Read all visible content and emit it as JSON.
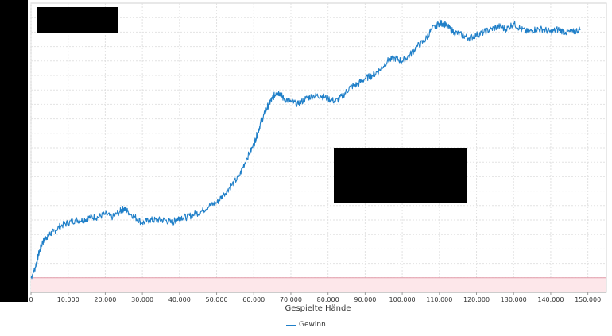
{
  "chart_data": {
    "type": "line",
    "title": "",
    "xlabel": "Gespielte Hände",
    "ylabel": "",
    "xlim": [
      0,
      155000
    ],
    "x_ticks": [
      0,
      10000,
      20000,
      30000,
      40000,
      50000,
      60000,
      70000,
      80000,
      90000,
      100000,
      110000,
      120000,
      130000,
      140000,
      150000
    ],
    "x_tick_labels": [
      "0",
      "10.000",
      "20.000",
      "30.000",
      "40.000",
      "50.000",
      "60.000",
      "70.000",
      "80.000",
      "90.000",
      "100.000",
      "110.000",
      "120.000",
      "130.000",
      "140.000",
      "150.000"
    ],
    "grid": true,
    "legend_position": "bottom",
    "negative_region": "shaded red below zero line",
    "series": [
      {
        "name": "Gewinn",
        "color": "#1f7fc8",
        "x": [
          0,
          1000,
          2000,
          3000,
          4000,
          5000,
          6000,
          8000,
          10000,
          12000,
          14000,
          16000,
          18000,
          20000,
          22000,
          24000,
          25000,
          26000,
          28000,
          30000,
          32000,
          34000,
          36000,
          38000,
          39000,
          40000,
          42000,
          44000,
          46000,
          48000,
          50000,
          52000,
          54000,
          56000,
          58000,
          60000,
          61000,
          62000,
          63000,
          64000,
          65000,
          66000,
          67000,
          68000,
          70000,
          72000,
          74000,
          76000,
          78000,
          80000,
          82000,
          84000,
          86000,
          88000,
          90000,
          92000,
          94000,
          96000,
          98000,
          100000,
          102000,
          104000,
          106000,
          108000,
          110000,
          111000,
          112000,
          114000,
          116000,
          118000,
          120000,
          122000,
          124000,
          126000,
          128000,
          130000,
          132000,
          134000,
          136000,
          138000,
          140000,
          142000,
          144000,
          146000,
          148000
        ],
        "values": [
          0,
          3,
          8,
          12,
          14,
          15,
          16,
          18,
          19,
          20,
          20,
          21,
          21,
          22,
          21,
          23,
          24,
          23,
          21,
          19,
          20,
          20,
          20,
          19,
          20,
          21,
          21,
          22,
          23,
          25,
          26,
          29,
          32,
          35,
          41,
          46,
          50,
          54,
          57,
          60,
          62,
          64,
          64,
          62,
          61,
          60,
          62,
          63,
          63,
          62,
          61,
          63,
          66,
          67,
          69,
          70,
          72,
          75,
          76,
          75,
          77,
          80,
          82,
          86,
          88,
          88,
          87,
          85,
          84,
          83,
          84,
          85,
          86,
          87,
          86,
          88,
          86,
          85,
          86,
          86,
          85,
          86,
          85,
          85,
          86
        ]
      }
    ]
  }
}
